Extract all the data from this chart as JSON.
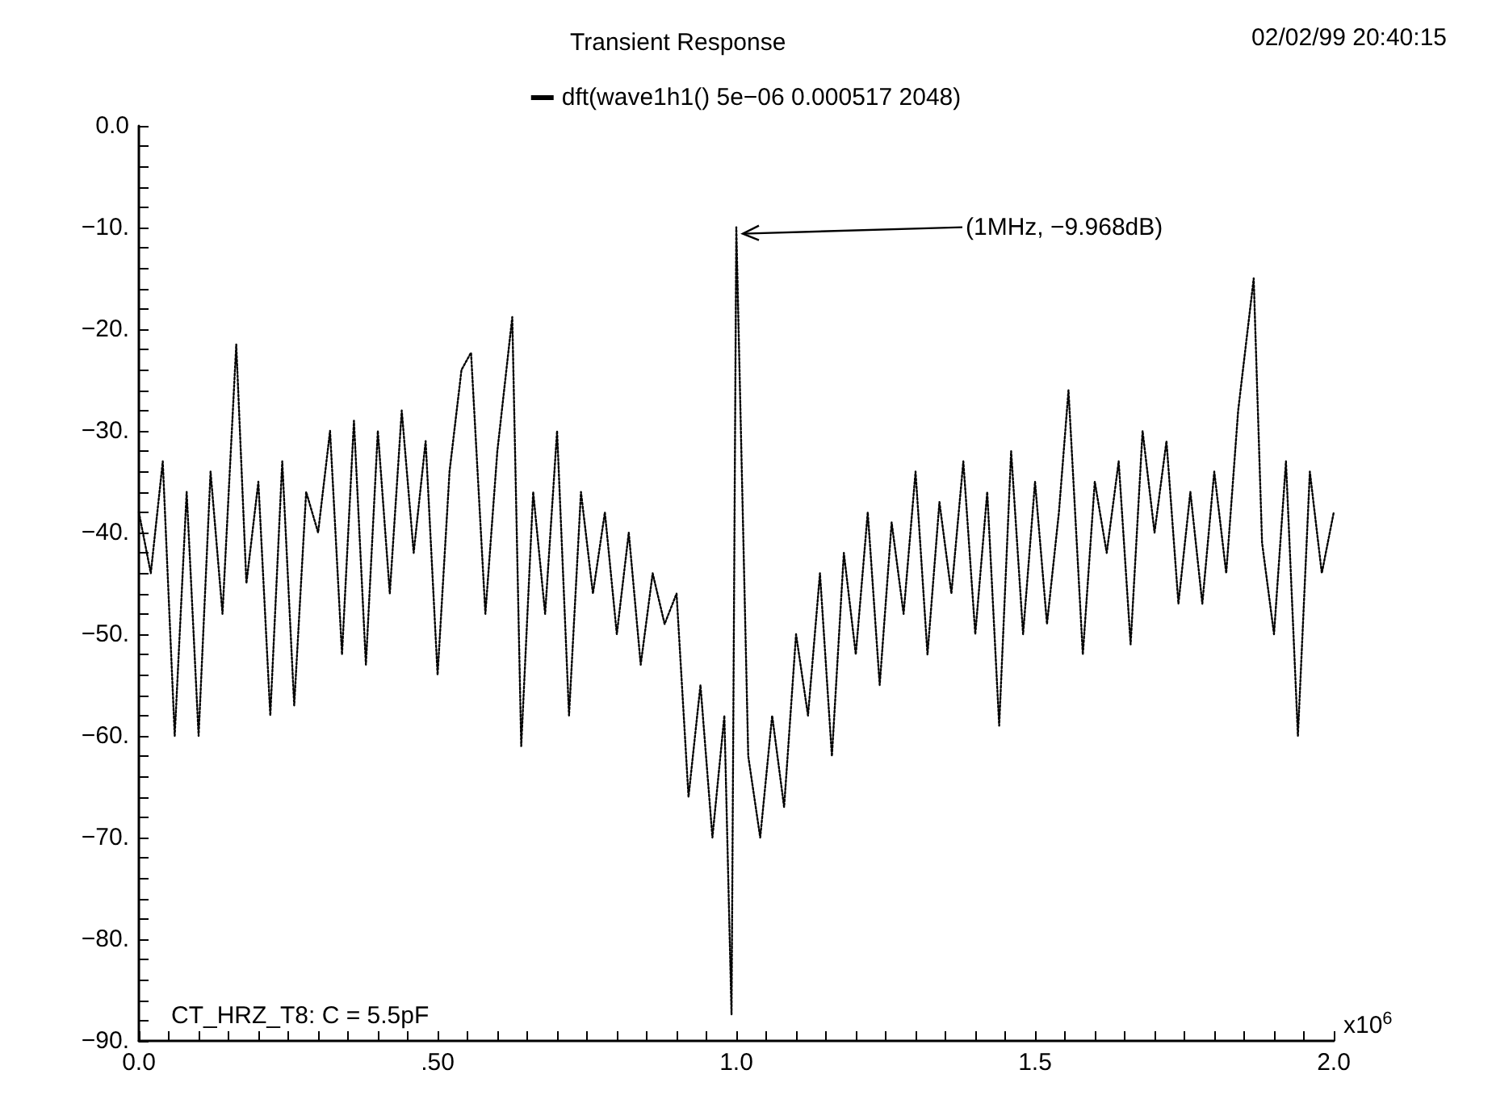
{
  "chart_data": {
    "type": "line",
    "title": "Transient Response",
    "xlabel": "x10$^{6}$",
    "legend": "top",
    "grid": false,
    "line_style": "dotted",
    "marker": "none",
    "annotations": [
      "02/02/99 20:40:15",
      "CT_HRZ_T8: C = 5.5pF",
      {
        "text": "(1MHz, −9.968dB)",
        "x": 1.0,
        "y": -9.968
      }
    ],
    "xlim": [
      0,
      2.0
    ],
    "xticks": [
      {
        "value": 0,
        "label": "0.0"
      },
      {
        "value": 0.05,
        "label": null
      },
      {
        "value": 0.1,
        "label": null
      },
      {
        "value": 0.15,
        "label": null
      },
      {
        "value": 0.2,
        "label": null
      },
      {
        "value": 0.25,
        "label": null
      },
      {
        "value": 0.3,
        "label": null
      },
      {
        "value": 0.35,
        "label": null
      },
      {
        "value": 0.4,
        "label": null
      },
      {
        "value": 0.45,
        "label": null
      },
      {
        "value": 0.5,
        "label": ".50"
      },
      {
        "value": 0.55,
        "label": null
      },
      {
        "value": 0.6,
        "label": null
      },
      {
        "value": 0.65,
        "label": null
      },
      {
        "value": 0.7,
        "label": null
      },
      {
        "value": 0.75,
        "label": null
      },
      {
        "value": 0.8,
        "label": null
      },
      {
        "value": 0.85,
        "label": null
      },
      {
        "value": 0.9,
        "label": null
      },
      {
        "value": 0.95,
        "label": null
      },
      {
        "value": 1.0,
        "label": "1.0"
      },
      {
        "value": 1.05,
        "label": null
      },
      {
        "value": 1.1,
        "label": null
      },
      {
        "value": 1.15,
        "label": null
      },
      {
        "value": 1.2,
        "label": null
      },
      {
        "value": 1.25,
        "label": null
      },
      {
        "value": 1.3,
        "label": null
      },
      {
        "value": 1.35,
        "label": null
      },
      {
        "value": 1.4,
        "label": null
      },
      {
        "value": 1.45,
        "label": null
      },
      {
        "value": 1.5,
        "label": "1.5"
      },
      {
        "value": 1.55,
        "label": null
      },
      {
        "value": 1.6,
        "label": null
      },
      {
        "value": 1.65,
        "label": null
      },
      {
        "value": 1.7,
        "label": null
      },
      {
        "value": 1.75,
        "label": null
      },
      {
        "value": 1.8,
        "label": null
      },
      {
        "value": 1.85,
        "label": null
      },
      {
        "value": 1.9,
        "label": null
      },
      {
        "value": 1.95,
        "label": null
      },
      {
        "value": 2.0,
        "label": "2.0"
      }
    ],
    "ylim": [
      -90,
      0
    ],
    "yticks": [
      {
        "value": 0,
        "label": "0.0"
      },
      {
        "value": -2,
        "label": null
      },
      {
        "value": -4,
        "label": null
      },
      {
        "value": -6,
        "label": null
      },
      {
        "value": -8,
        "label": null
      },
      {
        "value": -10,
        "label": "−10."
      },
      {
        "value": -12,
        "label": null
      },
      {
        "value": -14,
        "label": null
      },
      {
        "value": -16,
        "label": null
      },
      {
        "value": -18,
        "label": null
      },
      {
        "value": -20,
        "label": "−20."
      },
      {
        "value": -22,
        "label": null
      },
      {
        "value": -24,
        "label": null
      },
      {
        "value": -26,
        "label": null
      },
      {
        "value": -28,
        "label": null
      },
      {
        "value": -30,
        "label": "−30."
      },
      {
        "value": -32,
        "label": null
      },
      {
        "value": -34,
        "label": null
      },
      {
        "value": -36,
        "label": null
      },
      {
        "value": -38,
        "label": null
      },
      {
        "value": -40,
        "label": "−40."
      },
      {
        "value": -42,
        "label": null
      },
      {
        "value": -44,
        "label": null
      },
      {
        "value": -46,
        "label": null
      },
      {
        "value": -48,
        "label": null
      },
      {
        "value": -50,
        "label": "−50."
      },
      {
        "value": -52,
        "label": null
      },
      {
        "value": -54,
        "label": null
      },
      {
        "value": -56,
        "label": null
      },
      {
        "value": -58,
        "label": null
      },
      {
        "value": -60,
        "label": "−60."
      },
      {
        "value": -62,
        "label": null
      },
      {
        "value": -64,
        "label": null
      },
      {
        "value": -66,
        "label": null
      },
      {
        "value": -68,
        "label": null
      },
      {
        "value": -70,
        "label": "−70."
      },
      {
        "value": -72,
        "label": null
      },
      {
        "value": -74,
        "label": null
      },
      {
        "value": -76,
        "label": null
      },
      {
        "value": -78,
        "label": null
      },
      {
        "value": -80,
        "label": "−80."
      },
      {
        "value": -82,
        "label": null
      },
      {
        "value": -84,
        "label": null
      },
      {
        "value": -86,
        "label": null
      },
      {
        "value": -88,
        "label": null
      },
      {
        "value": -90,
        "label": "−90."
      }
    ],
    "series": [
      {
        "name": "dft(wave1h1() 5e−06 0.000517 2048)",
        "color": "#000000",
        "x": [
          0,
          0.02,
          0.04,
          0.06,
          0.08,
          0.1,
          0.12,
          0.14,
          0.163,
          0.18,
          0.2,
          0.22,
          0.24,
          0.26,
          0.28,
          0.3,
          0.32,
          0.34,
          0.36,
          0.38,
          0.4,
          0.42,
          0.44,
          0.46,
          0.48,
          0.5,
          0.52,
          0.54,
          0.556,
          0.58,
          0.6,
          0.625,
          0.64,
          0.66,
          0.68,
          0.7,
          0.72,
          0.74,
          0.76,
          0.78,
          0.8,
          0.82,
          0.84,
          0.86,
          0.88,
          0.9,
          0.92,
          0.94,
          0.96,
          0.98,
          0.992,
          1.0,
          1.02,
          1.04,
          1.06,
          1.08,
          1.1,
          1.12,
          1.14,
          1.16,
          1.18,
          1.2,
          1.22,
          1.24,
          1.26,
          1.28,
          1.3,
          1.32,
          1.34,
          1.36,
          1.38,
          1.4,
          1.42,
          1.44,
          1.46,
          1.48,
          1.5,
          1.52,
          1.54,
          1.556,
          1.58,
          1.6,
          1.62,
          1.64,
          1.66,
          1.68,
          1.7,
          1.72,
          1.74,
          1.76,
          1.78,
          1.8,
          1.82,
          1.84,
          1.866,
          1.88,
          1.9,
          1.92,
          1.94,
          1.96,
          1.98,
          2.0
        ],
        "values": [
          -38,
          -44,
          -33,
          -60,
          -36,
          -60,
          -34,
          -48,
          -21.5,
          -45,
          -35,
          -58,
          -33,
          -57,
          -36,
          -40,
          -30,
          -52,
          -29,
          -53,
          -30,
          -46,
          -28,
          -42,
          -31,
          -54,
          -34,
          -24,
          -22.3,
          -48,
          -32,
          -18.8,
          -61,
          -36,
          -48,
          -30,
          -58,
          -36,
          -46,
          -38,
          -50,
          -40,
          -53,
          -44,
          -49,
          -46,
          -66,
          -55,
          -70,
          -58,
          -87.4,
          -9.968,
          -62,
          -70,
          -58,
          -67,
          -50,
          -58,
          -44,
          -62,
          -42,
          -52,
          -38,
          -55,
          -39,
          -48,
          -34,
          -52,
          -37,
          -46,
          -33,
          -50,
          -36,
          -59,
          -32,
          -50,
          -35,
          -49,
          -38,
          -26,
          -52,
          -35,
          -42,
          -33,
          -51,
          -30,
          -40,
          -31,
          -47,
          -36,
          -47,
          -34,
          -44,
          -28,
          -15,
          -41,
          -50,
          -33,
          -60,
          -34,
          -44,
          -38
        ]
      }
    ]
  }
}
